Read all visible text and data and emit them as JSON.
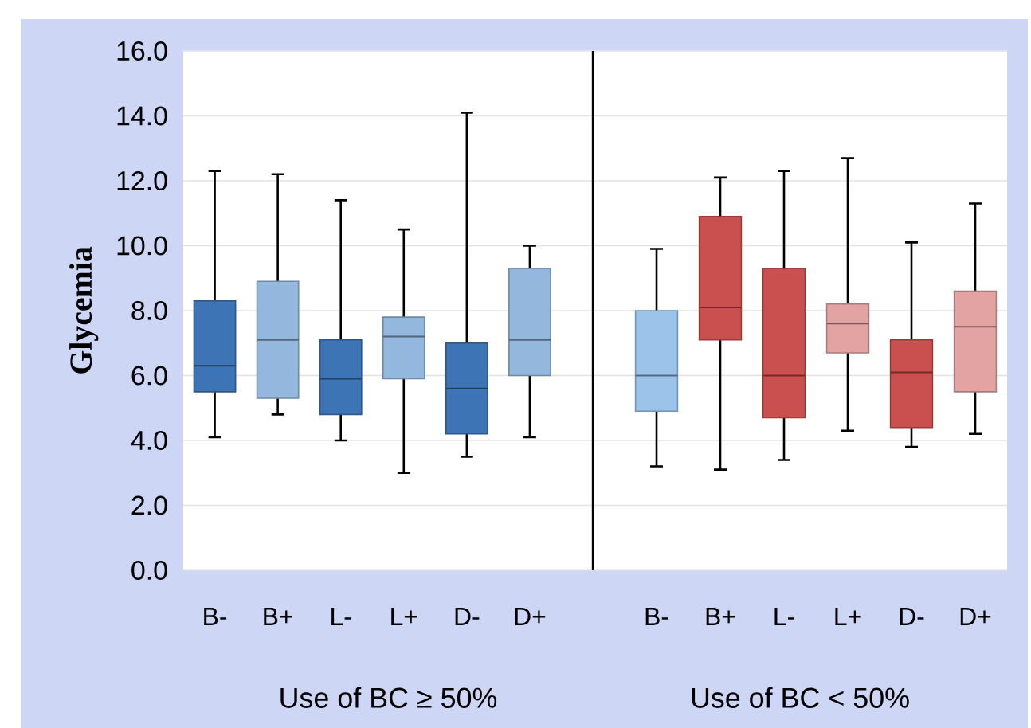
{
  "chart_data": [
    {
      "type": "box",
      "ylabel": "Glycemia",
      "xlabel": "Use of BC ≥ 50%",
      "categories": [
        "B-",
        "B+",
        "L-",
        "L+",
        "D-",
        "D+"
      ],
      "boxes": [
        {
          "low": 4.1,
          "q1": 5.5,
          "median": 6.3,
          "q3": 8.3,
          "high": 12.3
        },
        {
          "low": 4.8,
          "q1": 5.3,
          "median": 7.1,
          "q3": 8.9,
          "high": 12.2
        },
        {
          "low": 4.0,
          "q1": 4.8,
          "median": 5.9,
          "q3": 7.1,
          "high": 11.4
        },
        {
          "low": 3.0,
          "q1": 5.9,
          "median": 7.2,
          "q3": 7.8,
          "high": 10.5
        },
        {
          "low": 3.5,
          "q1": 4.2,
          "median": 5.6,
          "q3": 7.0,
          "high": 14.1
        },
        {
          "low": 4.1,
          "q1": 6.0,
          "median": 7.1,
          "q3": 9.3,
          "high": 10.0
        }
      ],
      "colors": [
        "#3d74b5",
        "#93b7dd",
        "#3d74b5",
        "#93b7dd",
        "#3d74b5",
        "#93b7dd"
      ],
      "ylim": [
        0,
        16
      ],
      "yticks": [
        {
          "value": 0,
          "label": "0.0"
        },
        {
          "value": 2,
          "label": "2.0"
        },
        {
          "value": 4,
          "label": "4.0"
        },
        {
          "value": 6,
          "label": "6.0"
        },
        {
          "value": 8,
          "label": "8.0"
        },
        {
          "value": 10,
          "label": "10.0"
        },
        {
          "value": 12,
          "label": "12.0"
        },
        {
          "value": 14,
          "label": "14.0"
        },
        {
          "value": 16,
          "label": "16.0"
        }
      ],
      "grid": "y"
    },
    {
      "type": "box",
      "xlabel": "Use of BC < 50%",
      "categories": [
        "B-",
        "B+",
        "L-",
        "L+",
        "D-",
        "D+"
      ],
      "boxes": [
        {
          "low": 3.2,
          "q1": 4.9,
          "median": 6.0,
          "q3": 8.0,
          "high": 9.9
        },
        {
          "low": 3.1,
          "q1": 7.1,
          "median": 8.1,
          "q3": 10.9,
          "high": 12.1
        },
        {
          "low": 3.4,
          "q1": 4.7,
          "median": 6.0,
          "q3": 9.3,
          "high": 12.3
        },
        {
          "low": 4.3,
          "q1": 6.7,
          "median": 7.6,
          "q3": 8.2,
          "high": 12.7
        },
        {
          "low": 3.8,
          "q1": 4.4,
          "median": 6.1,
          "q3": 7.1,
          "high": 10.1
        },
        {
          "low": 4.2,
          "q1": 5.5,
          "median": 7.5,
          "q3": 8.6,
          "high": 11.3
        }
      ],
      "colors": [
        "#9cc3ea",
        "#c9504e",
        "#c9504e",
        "#e4a3a3",
        "#c9504e",
        "#e4a3a3"
      ],
      "ylim": [
        0,
        16
      ],
      "yticks": [
        {
          "value": 0,
          "label": null
        },
        {
          "value": 2,
          "label": null
        },
        {
          "value": 4,
          "label": null
        },
        {
          "value": 6,
          "label": null
        },
        {
          "value": 8,
          "label": null
        },
        {
          "value": 10,
          "label": null
        },
        {
          "value": 12,
          "label": null
        },
        {
          "value": 14,
          "label": null
        },
        {
          "value": 16,
          "label": null
        }
      ],
      "grid": "y",
      "tick_labels": "x"
    }
  ]
}
